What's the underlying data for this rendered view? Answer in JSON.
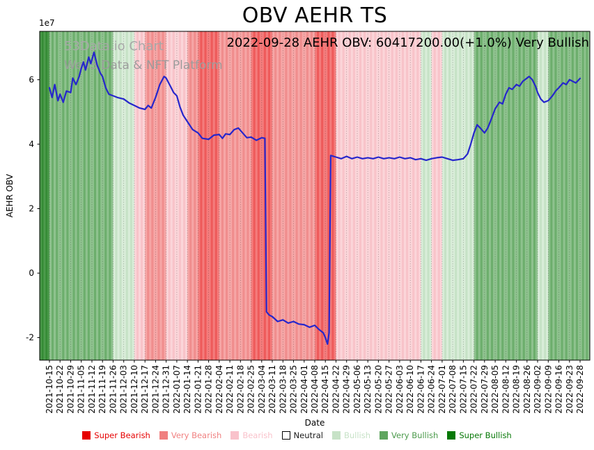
{
  "title": "OBV AEHR TS",
  "subtitle": "2022-09-28 AEHR OBV: 60417200.00(+1.0%) Very Bullish",
  "watermark": {
    "line1": "53Data.io Chart",
    "line2": "Web3 Data & NFT Platform"
  },
  "chart_data": {
    "type": "line",
    "title": "OBV AEHR TS",
    "xlabel": "Date",
    "ylabel": "AEHR OBV",
    "y_scale_label": "1e7",
    "y_unit": 10000000,
    "ylim": [
      -2.7,
      7.5
    ],
    "yticks": [
      -2,
      0,
      2,
      4,
      6
    ],
    "ytick_labels": [
      "-2",
      "0",
      "2",
      "4",
      "6"
    ],
    "grid": "vertical-dotted",
    "legend_position": "bottom",
    "categories": [
      "2021-10-15",
      "2021-10-22",
      "2021-10-29",
      "2021-11-05",
      "2021-11-12",
      "2021-11-19",
      "2021-11-26",
      "2021-12-03",
      "2021-12-10",
      "2021-12-17",
      "2021-12-24",
      "2021-12-31",
      "2022-01-07",
      "2022-01-14",
      "2022-01-21",
      "2022-01-28",
      "2022-02-04",
      "2022-02-11",
      "2022-02-18",
      "2022-02-25",
      "2022-03-04",
      "2022-03-11",
      "2022-03-18",
      "2022-03-25",
      "2022-04-01",
      "2022-04-08",
      "2022-04-15",
      "2022-04-22",
      "2022-04-29",
      "2022-05-06",
      "2022-05-13",
      "2022-05-20",
      "2022-05-27",
      "2022-06-03",
      "2022-06-10",
      "2022-06-17",
      "2022-06-24",
      "2022-07-01",
      "2022-07-08",
      "2022-07-15",
      "2022-07-22",
      "2022-07-29",
      "2022-08-05",
      "2022-08-12",
      "2022-08-19",
      "2022-08-26",
      "2022-09-02",
      "2022-09-09",
      "2022-09-16",
      "2022-09-23",
      "2022-09-28"
    ],
    "series": [
      {
        "name": "AEHR OBV",
        "color": "#2626cc",
        "points": [
          [
            0,
            5.75
          ],
          [
            0.25,
            5.45
          ],
          [
            0.5,
            5.85
          ],
          [
            0.8,
            5.35
          ],
          [
            1,
            5.55
          ],
          [
            1.3,
            5.3
          ],
          [
            1.6,
            5.65
          ],
          [
            2,
            5.6
          ],
          [
            2.2,
            6.05
          ],
          [
            2.5,
            5.85
          ],
          [
            2.8,
            6.1
          ],
          [
            3,
            6.35
          ],
          [
            3.2,
            6.55
          ],
          [
            3.4,
            6.3
          ],
          [
            3.7,
            6.7
          ],
          [
            3.9,
            6.5
          ],
          [
            4.2,
            6.85
          ],
          [
            4.5,
            6.45
          ],
          [
            4.8,
            6.2
          ],
          [
            5,
            6.1
          ],
          [
            5.3,
            5.75
          ],
          [
            5.6,
            5.55
          ],
          [
            6,
            5.5
          ],
          [
            6.4,
            5.45
          ],
          [
            7,
            5.4
          ],
          [
            7.5,
            5.28
          ],
          [
            8,
            5.2
          ],
          [
            8.5,
            5.12
          ],
          [
            9,
            5.08
          ],
          [
            9.3,
            5.2
          ],
          [
            9.6,
            5.12
          ],
          [
            10,
            5.45
          ],
          [
            10.4,
            5.85
          ],
          [
            10.8,
            6.1
          ],
          [
            11,
            6.05
          ],
          [
            11.4,
            5.8
          ],
          [
            11.7,
            5.6
          ],
          [
            12,
            5.5
          ],
          [
            12.3,
            5.15
          ],
          [
            12.6,
            4.9
          ],
          [
            13,
            4.7
          ],
          [
            13.5,
            4.45
          ],
          [
            14,
            4.35
          ],
          [
            14.4,
            4.18
          ],
          [
            15,
            4.15
          ],
          [
            15.5,
            4.28
          ],
          [
            16,
            4.3
          ],
          [
            16.3,
            4.18
          ],
          [
            16.6,
            4.32
          ],
          [
            17,
            4.3
          ],
          [
            17.4,
            4.45
          ],
          [
            17.8,
            4.5
          ],
          [
            18.2,
            4.35
          ],
          [
            18.6,
            4.2
          ],
          [
            19,
            4.22
          ],
          [
            19.5,
            4.12
          ],
          [
            20,
            4.2
          ],
          [
            20.3,
            4.18
          ],
          [
            20.45,
            -1.2
          ],
          [
            20.7,
            -1.3
          ],
          [
            21,
            -1.35
          ],
          [
            21.5,
            -1.5
          ],
          [
            22,
            -1.45
          ],
          [
            22.5,
            -1.55
          ],
          [
            23,
            -1.5
          ],
          [
            23.5,
            -1.58
          ],
          [
            24,
            -1.6
          ],
          [
            24.5,
            -1.68
          ],
          [
            25,
            -1.62
          ],
          [
            25.4,
            -1.75
          ],
          [
            25.8,
            -1.85
          ],
          [
            26,
            -2.0
          ],
          [
            26.2,
            -2.2
          ],
          [
            26.35,
            -1.85
          ],
          [
            26.5,
            3.65
          ],
          [
            27,
            3.6
          ],
          [
            27.5,
            3.55
          ],
          [
            28,
            3.62
          ],
          [
            28.5,
            3.55
          ],
          [
            29,
            3.6
          ],
          [
            29.5,
            3.55
          ],
          [
            30,
            3.58
          ],
          [
            30.5,
            3.55
          ],
          [
            31,
            3.6
          ],
          [
            31.5,
            3.55
          ],
          [
            32,
            3.58
          ],
          [
            32.5,
            3.55
          ],
          [
            33,
            3.6
          ],
          [
            33.5,
            3.55
          ],
          [
            34,
            3.58
          ],
          [
            34.5,
            3.52
          ],
          [
            35,
            3.55
          ],
          [
            35.5,
            3.5
          ],
          [
            36,
            3.55
          ],
          [
            36.5,
            3.58
          ],
          [
            37,
            3.6
          ],
          [
            37.5,
            3.55
          ],
          [
            38,
            3.5
          ],
          [
            38.5,
            3.52
          ],
          [
            39,
            3.55
          ],
          [
            39.4,
            3.7
          ],
          [
            39.7,
            4.0
          ],
          [
            40,
            4.35
          ],
          [
            40.3,
            4.6
          ],
          [
            40.6,
            4.5
          ],
          [
            41,
            4.35
          ],
          [
            41.3,
            4.5
          ],
          [
            41.6,
            4.75
          ],
          [
            42,
            5.1
          ],
          [
            42.4,
            5.3
          ],
          [
            42.7,
            5.25
          ],
          [
            43,
            5.55
          ],
          [
            43.3,
            5.75
          ],
          [
            43.6,
            5.7
          ],
          [
            44,
            5.85
          ],
          [
            44.3,
            5.8
          ],
          [
            44.6,
            5.95
          ],
          [
            45,
            6.05
          ],
          [
            45.2,
            6.1
          ],
          [
            45.5,
            6.0
          ],
          [
            45.8,
            5.8
          ],
          [
            46,
            5.6
          ],
          [
            46.3,
            5.4
          ],
          [
            46.6,
            5.3
          ],
          [
            47,
            5.35
          ],
          [
            47.4,
            5.5
          ],
          [
            47.7,
            5.65
          ],
          [
            48,
            5.75
          ],
          [
            48.4,
            5.9
          ],
          [
            48.7,
            5.85
          ],
          [
            49,
            6.0
          ],
          [
            49.3,
            5.95
          ],
          [
            49.6,
            5.9
          ],
          [
            50,
            6.04
          ]
        ]
      }
    ],
    "annotation": {
      "date": "2022-09-28",
      "label": "AEHR OBV",
      "value": "60417200.00",
      "change_pct": "+1.0%",
      "sentiment": "Very Bullish"
    },
    "sentiments": {
      "leading": "Super Bullish",
      "by_week": [
        "Very Bullish",
        "Very Bullish",
        "Very Bullish",
        "Very Bullish",
        "Very Bullish",
        "Very Bullish",
        "Bullish",
        "Bullish",
        "Bearish",
        "Very Bearish",
        "Very Bearish",
        "Bearish",
        "Bearish",
        "Very Bearish",
        "Super Bearish",
        "Super Bearish",
        "Very Bearish",
        "Very Bearish",
        "Very Bearish",
        "Super Bearish",
        "Super Bearish",
        "Very Bearish",
        "Very Bearish",
        "Very Bearish",
        "Very Bearish",
        "Super Bearish",
        "Super Bearish",
        "Bearish",
        "Bearish",
        "Bearish",
        "Bearish",
        "Bearish",
        "Bearish",
        "Bearish",
        "Bearish",
        "Bullish",
        "Bearish",
        "Bullish",
        "Bullish",
        "Bullish",
        "Very Bullish",
        "Very Bullish",
        "Very Bullish",
        "Very Bullish",
        "Very Bullish",
        "Very Bullish",
        "Bullish",
        "Very Bullish",
        "Very Bullish",
        "Very Bullish",
        "Very Bullish"
      ]
    },
    "sentiment_colors": {
      "Super Bearish": [
        "#f47c7c",
        "#ee5a5a"
      ],
      "Very Bearish": [
        "#f6a6a6",
        "#f08d8d"
      ],
      "Bearish": [
        "#fbd5d9",
        "#f8c3c9"
      ],
      "Neutral": [
        "#ffffff",
        "#f5f5f5"
      ],
      "Bullish": [
        "#d9edd9",
        "#c6e2c6"
      ],
      "Very Bullish": [
        "#8ec28e",
        "#6cae6c"
      ],
      "Super Bullish": [
        "#4d9b4d",
        "#358c35"
      ]
    }
  },
  "legend": {
    "items": [
      {
        "label": "Super Bearish",
        "color": "#e60000",
        "text_color": "#e60000",
        "border": null
      },
      {
        "label": "Very Bearish",
        "color": "#f08080",
        "text_color": "#f08080",
        "border": null
      },
      {
        "label": "Bearish",
        "color": "#f9c2cb",
        "text_color": "#f9c2cb",
        "border": null
      },
      {
        "label": "Neutral",
        "color": "#ffffff",
        "text_color": "#1a1a1a",
        "border": "#000000"
      },
      {
        "label": "Bullish",
        "color": "#c7e2c7",
        "text_color": "#c7e2c7",
        "border": null
      },
      {
        "label": "Very Bullish",
        "color": "#5fa55f",
        "text_color": "#4b9a4b",
        "border": null
      },
      {
        "label": "Super Bullish",
        "color": "#067806",
        "text_color": "#067806",
        "border": null
      }
    ]
  }
}
